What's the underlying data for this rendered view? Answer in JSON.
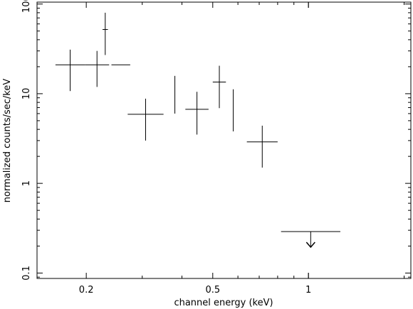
{
  "chart_data": {
    "type": "scatter",
    "title": "",
    "xlabel": "channel energy (keV)",
    "ylabel": "normalized counts/sec/keV",
    "xscale": "log",
    "yscale": "log",
    "xlim": [
      0.14,
      2.1
    ],
    "ylim": [
      0.087,
      105
    ],
    "x_ticks": [
      {
        "value": 0.2,
        "label": "0.2"
      },
      {
        "value": 0.5,
        "label": "0.5"
      },
      {
        "value": 1,
        "label": "1"
      }
    ],
    "y_ticks": [
      {
        "value": 0.1,
        "label": "0.1"
      },
      {
        "value": 1,
        "label": "1"
      },
      {
        "value": 10,
        "label": "10"
      },
      {
        "value": 100,
        "label": "100"
      }
    ],
    "points": [
      {
        "x_lo": 0.16,
        "x_hi": 0.198,
        "y": 21,
        "y_lo": 10.7,
        "y_hi": 31
      },
      {
        "x_lo": 0.198,
        "x_hi": 0.236,
        "y": 21,
        "y_lo": 11.9,
        "y_hi": 30
      },
      {
        "x_lo": 0.225,
        "x_hi": 0.234,
        "y": 52,
        "y_lo": 27,
        "y_hi": 80
      },
      {
        "x_lo": 0.24,
        "x_hi": 0.275,
        "y": 21,
        "y_lo": 21,
        "y_hi": 21
      },
      {
        "x_lo": 0.27,
        "x_hi": 0.35,
        "y": 5.9,
        "y_lo": 3.0,
        "y_hi": 8.8
      },
      {
        "x_lo": 0.38,
        "x_hi": 0.38,
        "y": 9.6,
        "y_lo": 6.0,
        "y_hi": 15.8
      },
      {
        "x_lo": 0.41,
        "x_hi": 0.485,
        "y": 6.7,
        "y_lo": 3.5,
        "y_hi": 10.5
      },
      {
        "x_lo": 0.5,
        "x_hi": 0.55,
        "y": 13.5,
        "y_lo": 6.9,
        "y_hi": 20.5
      },
      {
        "x_lo": 0.58,
        "x_hi": 0.58,
        "y": 7.6,
        "y_lo": 3.8,
        "y_hi": 11.2
      },
      {
        "x_lo": 0.64,
        "x_hi": 0.8,
        "y": 2.9,
        "y_lo": 1.5,
        "y_hi": 4.4
      }
    ],
    "upper_limits": [
      {
        "x_lo": 0.82,
        "x_hi": 1.26,
        "y": 0.29
      }
    ],
    "grid": false,
    "legend": "none"
  }
}
